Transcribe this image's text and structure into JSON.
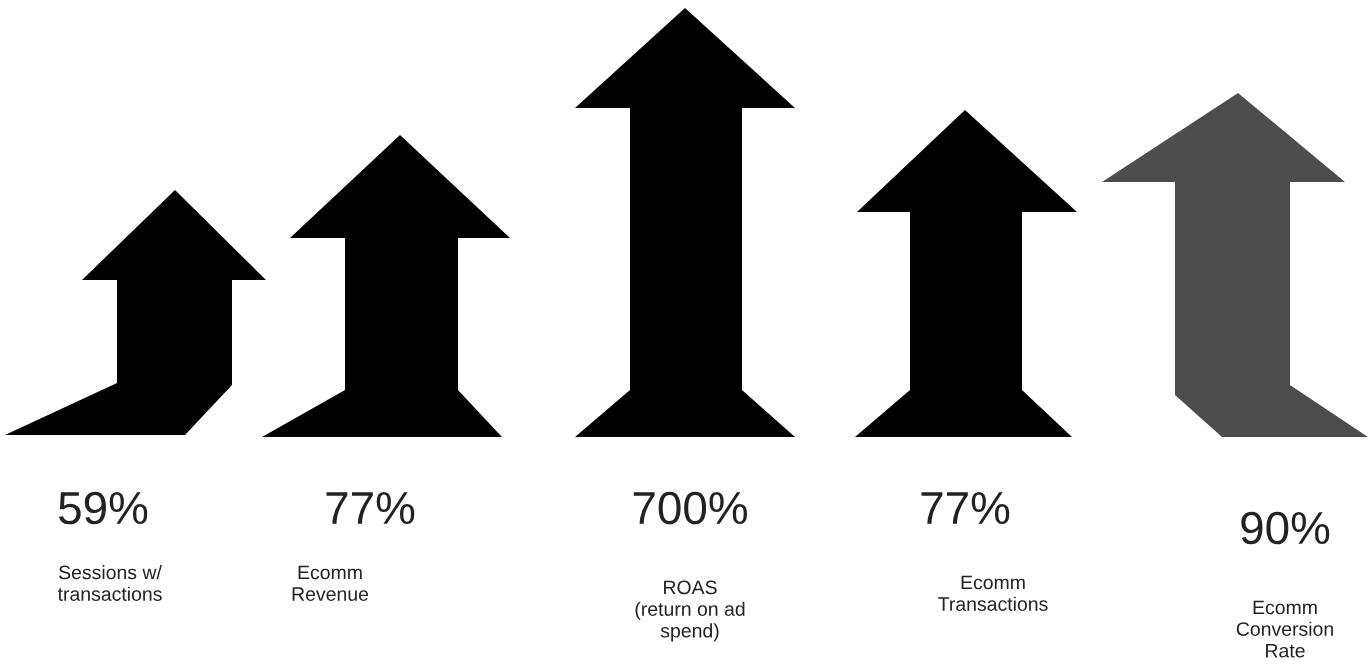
{
  "chart_data": {
    "type": "other",
    "categories": [
      "Sessions w/\ntransactions",
      "Ecomm\nRevenue",
      "ROAS\n(return on ad\nspend)",
      "Ecomm\nTransactions",
      "Ecomm\nConversion\nRate"
    ],
    "values": [
      59,
      77,
      700,
      77,
      90
    ],
    "value_labels": [
      "59%",
      "77%",
      "700%",
      "77%",
      "90%"
    ],
    "colors": [
      "#000000",
      "#000000",
      "#000000",
      "#000000",
      "#4d4d4d"
    ]
  }
}
